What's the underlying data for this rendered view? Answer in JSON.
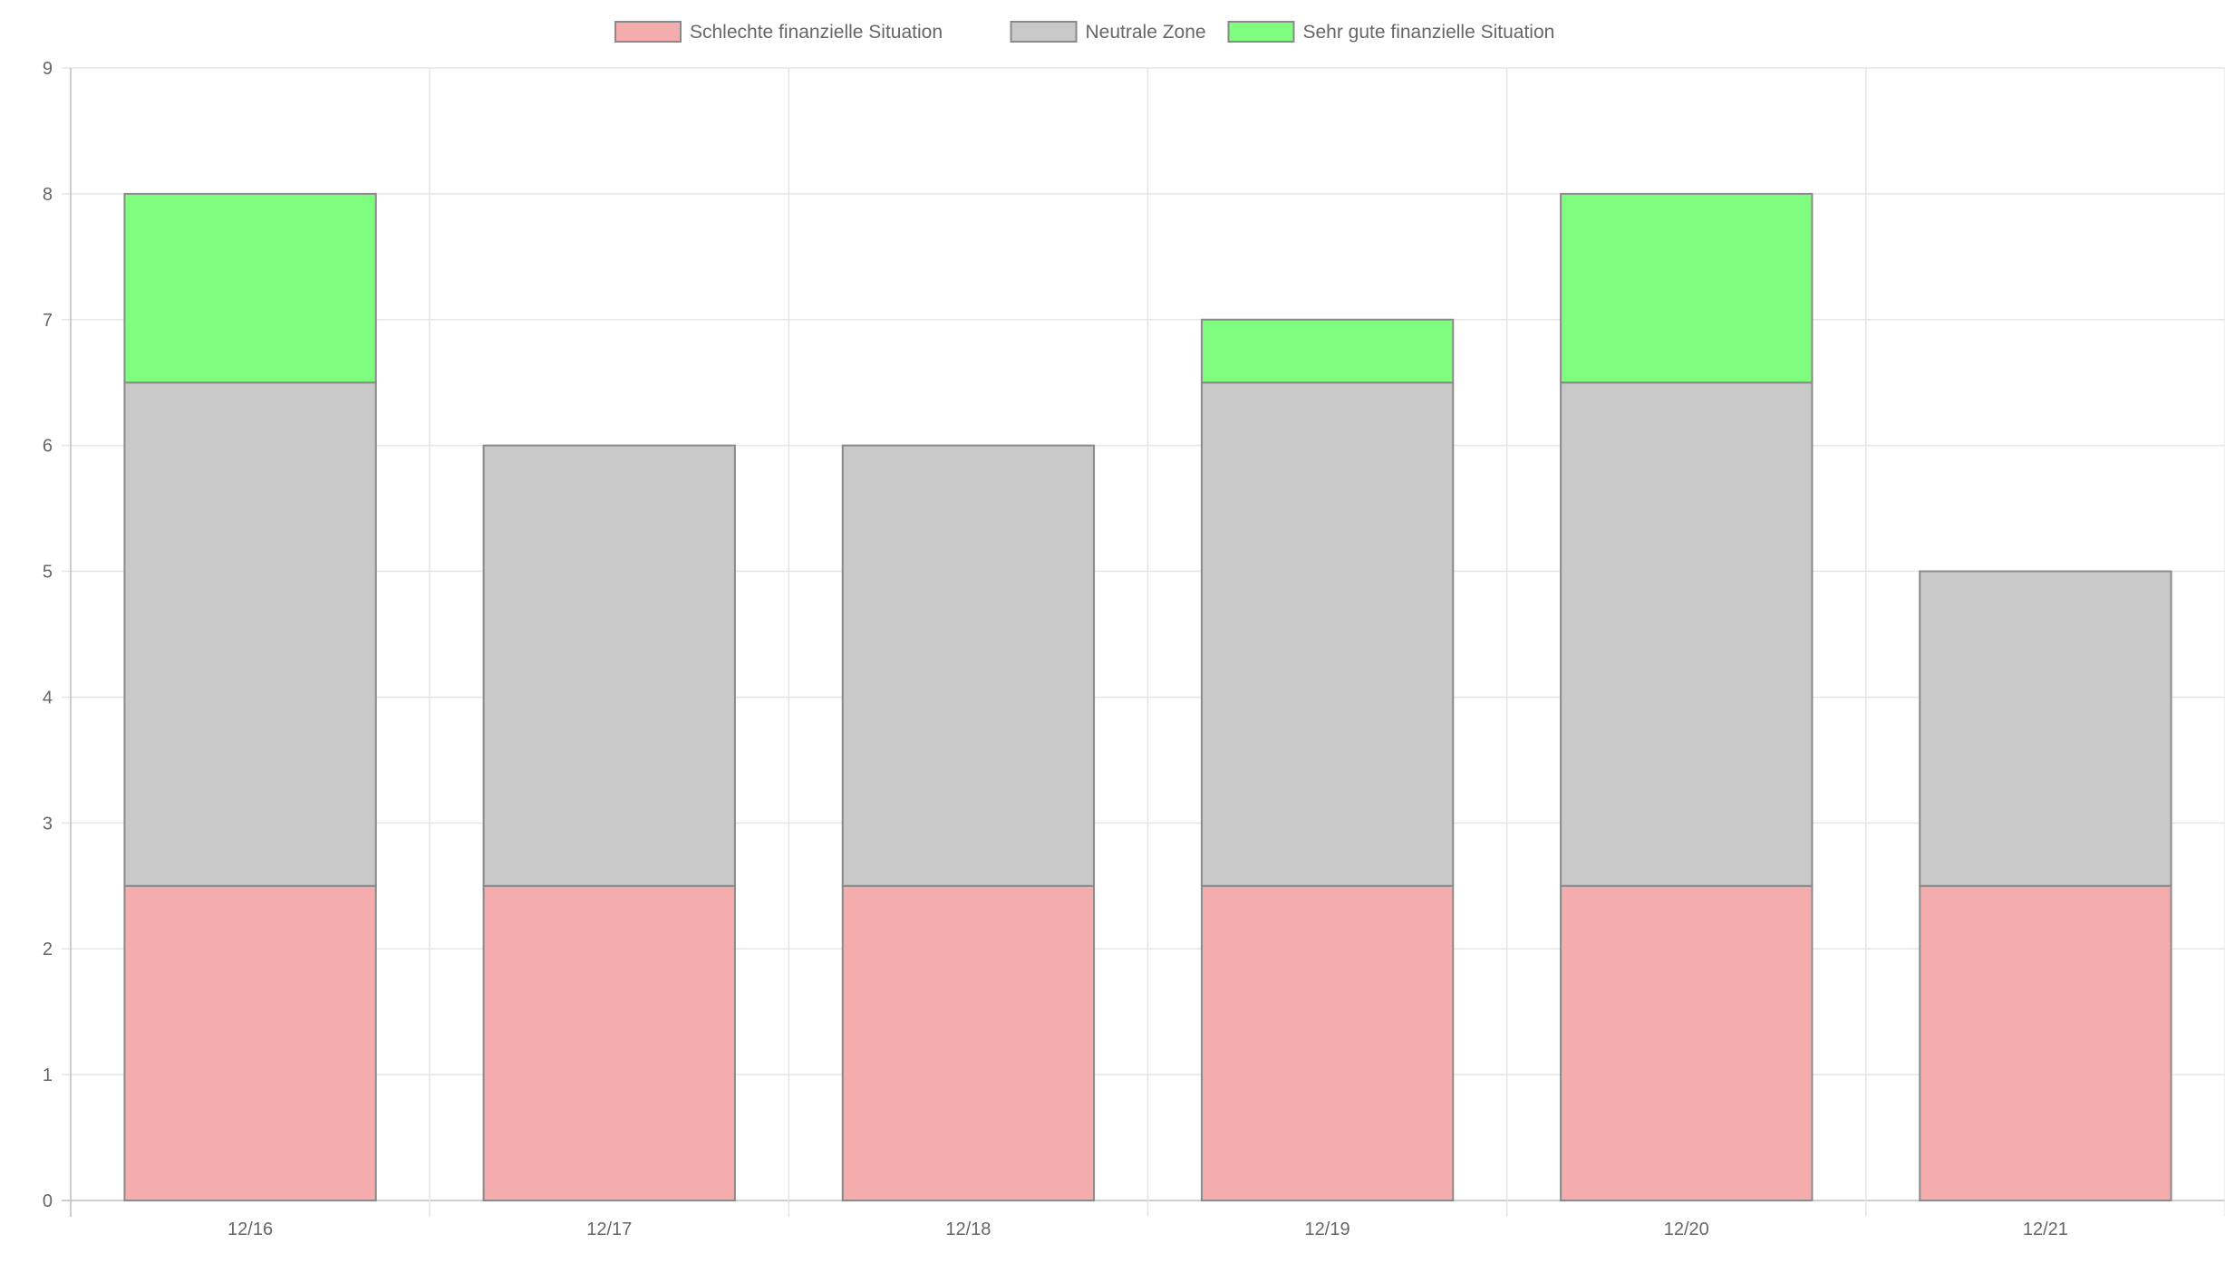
{
  "chart_data": {
    "type": "bar",
    "stacked": true,
    "title": "",
    "xlabel": "",
    "ylabel": "",
    "categories": [
      "12/16",
      "12/17",
      "12/18",
      "12/19",
      "12/20",
      "12/21"
    ],
    "ylim": [
      0,
      9
    ],
    "yticks": [
      "0",
      "1",
      "2",
      "3",
      "4",
      "5",
      "6",
      "7",
      "8",
      "9"
    ],
    "grid": true,
    "legend_position": "top-center",
    "series": [
      {
        "name": "Schlechte finanzielle Situation",
        "color": "#f4acac",
        "values": [
          2.5,
          2.5,
          2.5,
          2.5,
          2.5,
          2.5
        ]
      },
      {
        "name": "Neutrale Zone",
        "color": "#c9c9c9",
        "values": [
          4.0,
          3.5,
          3.5,
          4.0,
          4.0,
          2.5
        ]
      },
      {
        "name": "Sehr gute finanzielle Situation",
        "color": "#7ffd7e",
        "values": [
          1.5,
          0,
          0,
          0.5,
          1.5,
          0
        ]
      }
    ],
    "colors": {
      "bar_border": "#8a8a8a",
      "grid": "#e5e5e5",
      "axis": "#bdbdbd",
      "text": "#666666"
    }
  }
}
